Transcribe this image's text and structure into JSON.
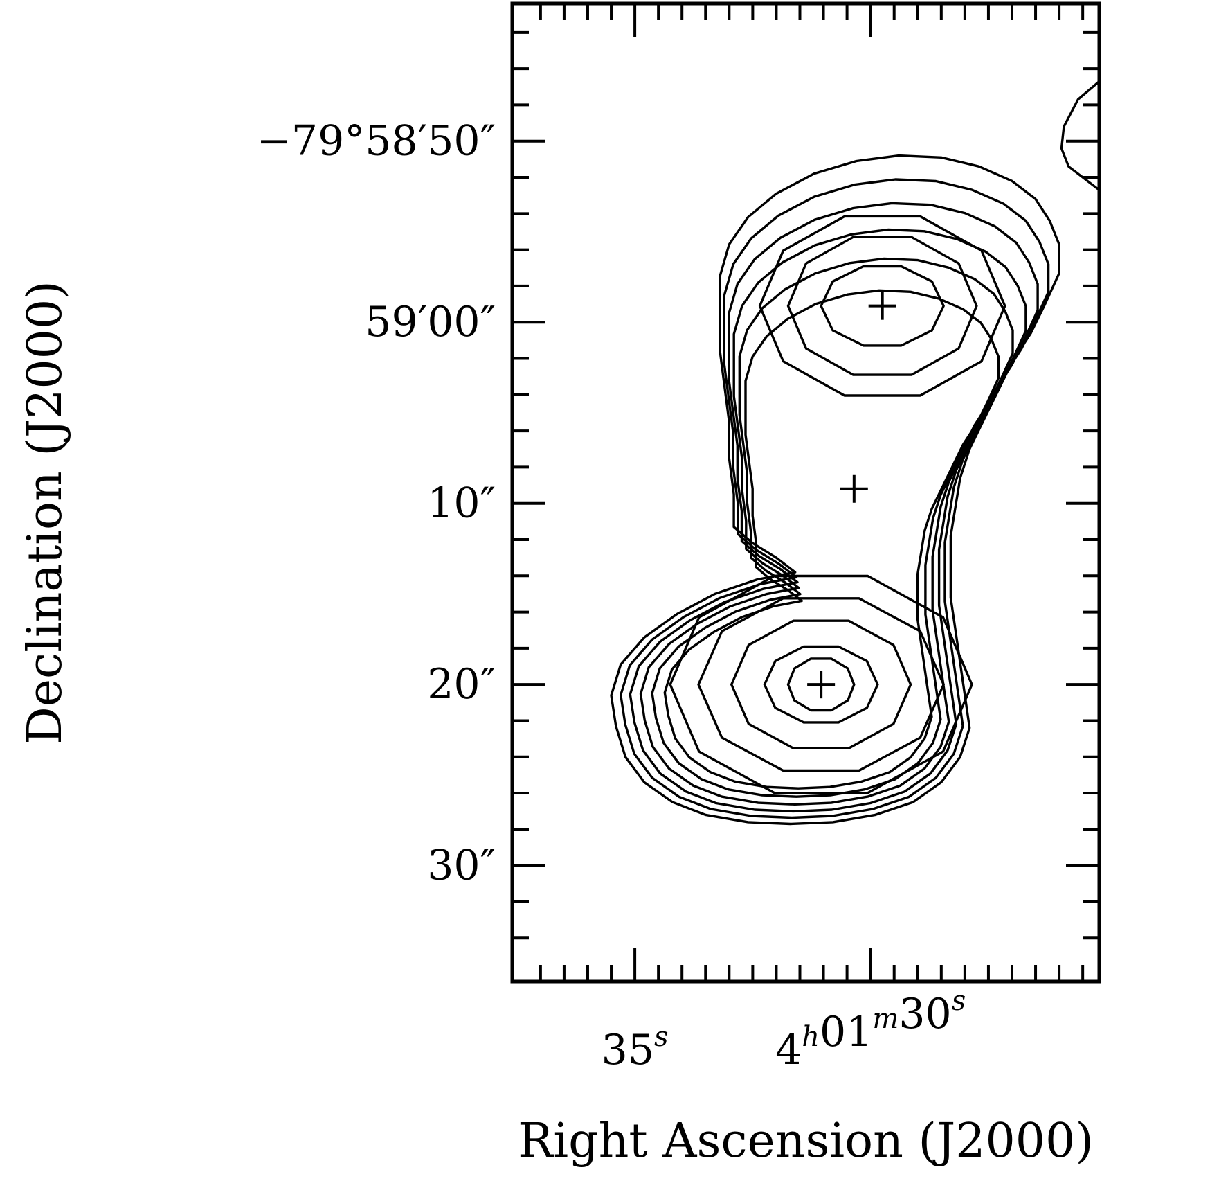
{
  "chart_data": {
    "type": "contour",
    "xlabel": "Right Ascension (J2000)",
    "ylabel": "Declination (J2000)",
    "x_ticks": [
      {
        "value": 35,
        "label_parts": [
          [
            "35",
            "s"
          ]
        ]
      },
      {
        "value": 30,
        "label_parts": [
          [
            "4",
            "h"
          ],
          [
            "01",
            "m"
          ],
          [
            "30",
            "s"
          ]
        ]
      }
    ],
    "y_ticks": [
      {
        "value": -10,
        "label": "−79°58′50″"
      },
      {
        "value": 0,
        "label": "59′00″"
      },
      {
        "value": 10,
        "label": "10″"
      },
      {
        "value": 20,
        "label": "20″"
      },
      {
        "value": 30,
        "label": "30″"
      }
    ],
    "xlim": [
      37.6,
      25.15
    ],
    "ylim": [
      -17.6,
      36.4
    ],
    "markers": [
      {
        "name": "northern-peak",
        "x": 29.75,
        "y": -0.9
      },
      {
        "name": "core",
        "x": 30.35,
        "y": 9.2
      },
      {
        "name": "southern-peak",
        "x": 31.05,
        "y": 20.0
      }
    ],
    "contours": [
      [
        [
          31.6,
          13.8
        ],
        [
          32.0,
          13.0
        ],
        [
          32.5,
          12.2
        ],
        [
          32.9,
          11.3
        ],
        [
          32.9,
          9.5
        ],
        [
          33.0,
          7.5
        ],
        [
          33.0,
          5.5
        ],
        [
          33.1,
          3.5
        ],
        [
          33.2,
          1.5
        ],
        [
          33.2,
          -0.5
        ],
        [
          33.2,
          -2.5
        ],
        [
          33.0,
          -4.3
        ],
        [
          32.6,
          -5.8
        ],
        [
          32.0,
          -7.1
        ],
        [
          31.2,
          -8.2
        ],
        [
          30.3,
          -8.9
        ],
        [
          29.4,
          -9.2
        ],
        [
          28.5,
          -9.1
        ],
        [
          27.7,
          -8.6
        ],
        [
          27.0,
          -7.8
        ],
        [
          26.5,
          -6.8
        ],
        [
          26.2,
          -5.6
        ],
        [
          26.0,
          -4.3
        ],
        [
          26.0,
          -2.7
        ],
        [
          26.3,
          -1.0
        ],
        [
          26.6,
          0.6
        ],
        [
          27.0,
          2.2
        ],
        [
          27.3,
          3.8
        ],
        [
          27.6,
          5.4
        ],
        [
          27.9,
          7.0
        ],
        [
          28.1,
          8.6
        ],
        [
          28.2,
          10.2
        ],
        [
          28.3,
          11.8
        ],
        [
          28.3,
          13.5
        ],
        [
          28.3,
          15.2
        ],
        [
          28.2,
          17.0
        ],
        [
          28.1,
          18.8
        ],
        [
          28.0,
          20.6
        ],
        [
          27.9,
          22.4
        ],
        [
          28.1,
          24.0
        ],
        [
          28.5,
          25.4
        ],
        [
          29.1,
          26.5
        ],
        [
          29.9,
          27.2
        ],
        [
          30.8,
          27.6
        ],
        [
          31.7,
          27.7
        ],
        [
          32.6,
          27.6
        ],
        [
          33.5,
          27.2
        ],
        [
          34.2,
          26.5
        ],
        [
          34.8,
          25.4
        ],
        [
          35.2,
          24.0
        ],
        [
          35.4,
          22.3
        ],
        [
          35.5,
          20.6
        ],
        [
          35.3,
          18.9
        ],
        [
          34.8,
          17.4
        ],
        [
          34.1,
          16.1
        ],
        [
          33.3,
          15.0
        ],
        [
          32.4,
          14.2
        ],
        [
          31.6,
          13.8
        ]
      ]
    ]
  }
}
